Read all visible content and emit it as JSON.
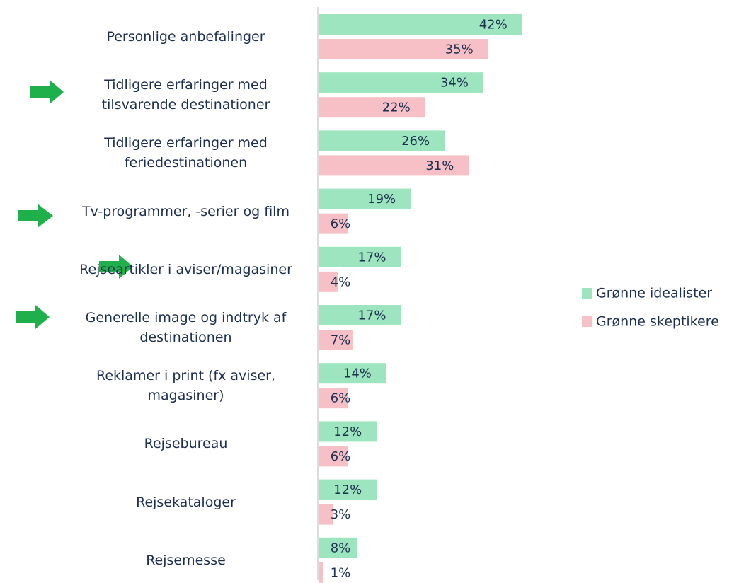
{
  "chart_data": {
    "type": "bar",
    "orientation": "horizontal",
    "categories": [
      "Personlige anbefalinger",
      "Tidligere erfaringer med tilsvarende destinationer",
      "Tidligere erfaringer med feriedestinationen",
      "Tv-programmer, -serier og film",
      "Rejseartikler i aviser/magasiner",
      "Generelle image og indtryk af destinationen",
      "Reklamer i print (fx aviser, magasiner)",
      "Rejsebureau",
      "Rejsekataloger",
      "Rejsemesse"
    ],
    "series": [
      {
        "name": "Grønne idealister",
        "color": "#9de5bf",
        "values": [
          42,
          34,
          26,
          19,
          17,
          17,
          14,
          12,
          12,
          8
        ],
        "value_labels": [
          "42%",
          "34%",
          "26%",
          "19%",
          "17%",
          "17%",
          "14%",
          "12%",
          "12%",
          "8%"
        ]
      },
      {
        "name": "Grønne skeptikere",
        "color": "#f6c0c6",
        "values": [
          35,
          22,
          31,
          6,
          4,
          7,
          6,
          6,
          3,
          1
        ],
        "value_labels": [
          "35%",
          "22%",
          "31%",
          "6%",
          "4%",
          "7%",
          "6%",
          "6%",
          "3%",
          "1%"
        ]
      }
    ],
    "legend": "right"
  }
}
